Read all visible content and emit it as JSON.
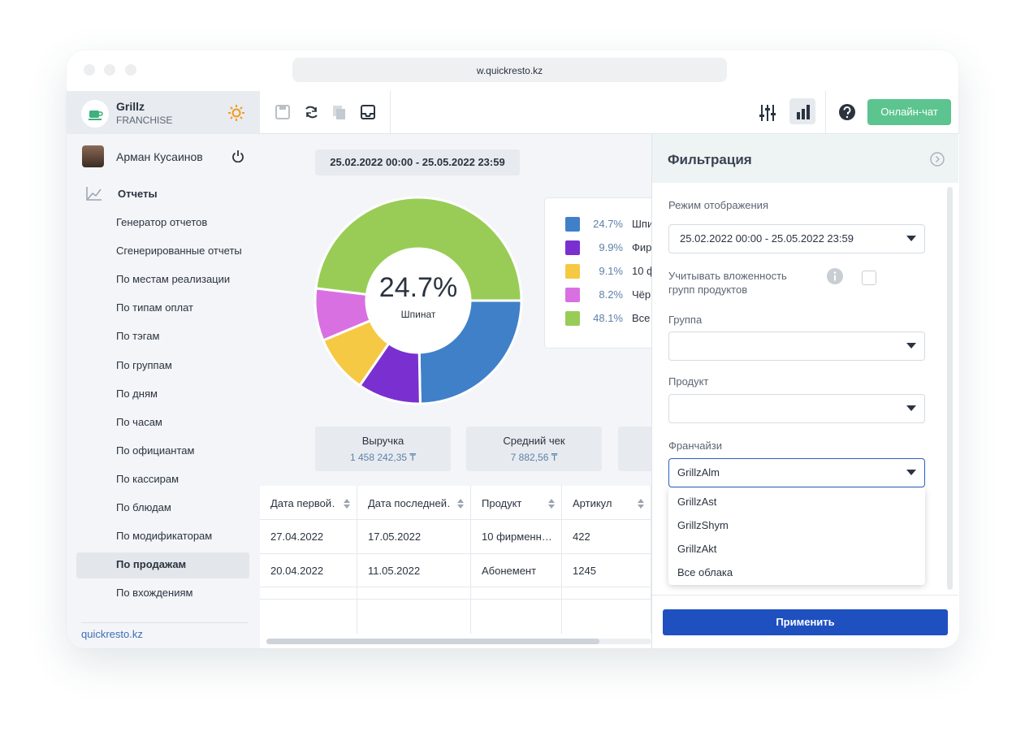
{
  "browser": {
    "url": "w.quickresto.kz"
  },
  "sidebar": {
    "brand": "Grillz",
    "brand_sub": "FRANCHISE",
    "user": "Арман Кусаинов",
    "section": "Отчеты",
    "menu": [
      "Генератор отчетов",
      "Сгенерированные отчеты",
      "По местам реализации",
      "По типам оплат",
      "По тэгам",
      "По группам",
      "По дням",
      "По часам",
      "По официантам",
      "По кассирам",
      "По блюдам",
      "По модификаторам",
      "По продажам",
      "По вхождениям"
    ],
    "selected": 12,
    "footer_link": "quickresto.kz"
  },
  "toolbar": {
    "chat_button": "Онлайн-чат"
  },
  "report": {
    "period": "25.02.2022 00:00 - 25.05.2022 23:59",
    "kpis": [
      {
        "label": "Выручка",
        "value": "1 458 242,35 ₸"
      },
      {
        "label": "Средний чек",
        "value": "7 882,56 ₸"
      }
    ],
    "table": {
      "columns": [
        "Дата первой…",
        "Дата последней…",
        "Продукт",
        "Артикул"
      ],
      "rows": [
        [
          "27.04.2022",
          "17.05.2022",
          "10 фирменн…",
          "422"
        ],
        [
          "20.04.2022",
          "11.05.2022",
          "Абонемент",
          "1245"
        ]
      ]
    }
  },
  "chart_data": {
    "type": "pie",
    "donut": true,
    "labels": [
      "Шпи",
      "Фир",
      "10 ф",
      "Чёр",
      "Все"
    ],
    "values": [
      24.7,
      9.9,
      9.1,
      8.2,
      48.1
    ],
    "value_labels": [
      "24.7%",
      "9.9%",
      "9.1%",
      "8.2%",
      "48.1%"
    ],
    "colors": [
      "#3f80c9",
      "#7a30d0",
      "#f5c944",
      "#d970e2",
      "#99cc56"
    ],
    "center_label": "Шпинат"
  },
  "filter": {
    "title": "Фильтрация",
    "mode_label": "Режим отображения",
    "mode_value": "25.02.2022 00:00 - 25.05.2022 23:59",
    "nesting_label": [
      "Учитывать вложенность",
      "групп продуктов"
    ],
    "group_label": "Группа",
    "product_label": "Продукт",
    "franchise_label": "Франчайзи",
    "franchise_value": "GrillzAlm",
    "franchise_options": [
      "GrillzAst",
      "GrillzShym",
      "GrillzAkt",
      "Все облака"
    ],
    "apply_button": "Применить"
  }
}
